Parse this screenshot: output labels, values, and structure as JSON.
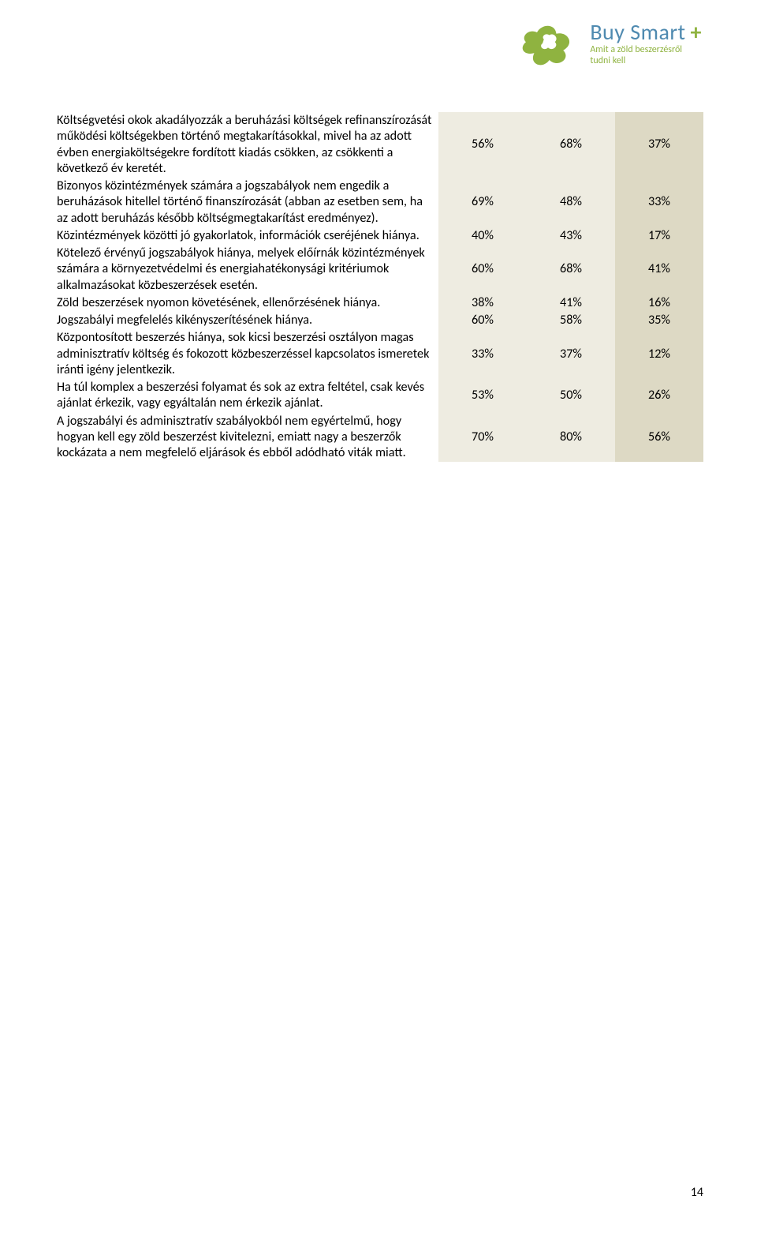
{
  "brand": {
    "name": "Buy Smart",
    "plus": "+",
    "tagline_l1": "Amit a zöld beszerzésről",
    "tagline_l2": "tudni kell"
  },
  "colors": {
    "logo_green": "#8fb340",
    "brand_blue": "#4f8ab0",
    "col_bg_light": "#eeece1",
    "col_bg_dark": "#ddd9c4"
  },
  "table": {
    "rows": [
      {
        "label": "Költségvetési okok akadályozzák a beruházási költségek refinanszírozását működési költségekben történő megtakarításokkal, mivel ha az adott évben energiaköltségekre fordított kiadás csökken, az csökkenti a következő év keretét.",
        "c1": "56%",
        "c2": "68%",
        "c3": "37%"
      },
      {
        "label": "Bizonyos közintézmények számára a jogszabályok nem engedik a beruházások hitellel történő finanszírozását (abban az esetben sem, ha az adott beruházás később költségmegtakarítást eredményez).",
        "c1": "69%",
        "c2": "48%",
        "c3": "33%"
      },
      {
        "label": "Közintézmények közötti jó gyakorlatok, információk cseréjének hiánya.",
        "c1": "40%",
        "c2": "43%",
        "c3": "17%"
      },
      {
        "label": "Kötelező érvényű jogszabályok hiánya, melyek előírnák közintézmények számára a környezetvédelmi és energiahatékonysági kritériumok alkalmazásokat közbeszerzések esetén.",
        "c1": "60%",
        "c2": "68%",
        "c3": "41%"
      },
      {
        "label": "Zöld beszerzések nyomon követésének, ellenőrzésének hiánya.",
        "c1": "38%",
        "c2": "41%",
        "c3": "16%"
      },
      {
        "label": "Jogszabályi megfelelés kikényszerítésének hiánya.",
        "c1": "60%",
        "c2": "58%",
        "c3": "35%"
      },
      {
        "label": "Központosított beszerzés hiánya, sok kicsi beszerzési osztályon magas adminisztratív költség és fokozott közbeszerzéssel kapcsolatos ismeretek iránti igény jelentkezik.",
        "c1": "33%",
        "c2": "37%",
        "c3": "12%"
      },
      {
        "label": "Ha túl komplex a beszerzési folyamat és sok az extra feltétel, csak kevés ajánlat érkezik, vagy egyáltalán nem érkezik ajánlat.",
        "c1": "53%",
        "c2": "50%",
        "c3": "26%"
      },
      {
        "label": "A jogszabályi és adminisztratív szabályokból nem egyértelmű, hogy hogyan kell egy zöld beszerzést kivitelezni, emiatt nagy a beszerzők kockázata a nem megfelelő eljárások és ebből adódható viták miatt.",
        "c1": "70%",
        "c2": "80%",
        "c3": "56%"
      }
    ]
  },
  "page_number": "14"
}
